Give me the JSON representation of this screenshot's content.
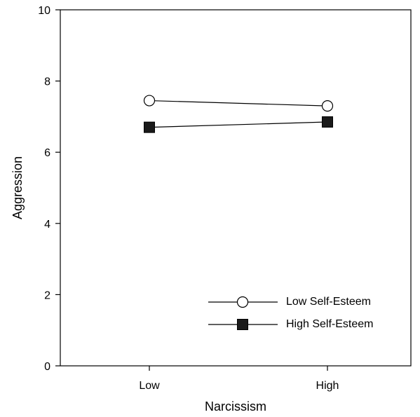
{
  "chart_data": {
    "type": "line",
    "title": "",
    "xlabel": "Narcissism",
    "ylabel": "Aggression",
    "categories": [
      "Low",
      "High"
    ],
    "ylim": [
      0,
      10
    ],
    "yticks": [
      0,
      2,
      4,
      6,
      8,
      10
    ],
    "grid": false,
    "legend_position": "bottom-right",
    "series": [
      {
        "name": "Low Self-Esteem",
        "values": [
          7.45,
          7.3
        ],
        "marker": "open-circle",
        "color": "#000000"
      },
      {
        "name": "High Self-Esteem",
        "values": [
          6.7,
          6.85
        ],
        "marker": "filled-square",
        "color": "#000000"
      }
    ]
  }
}
